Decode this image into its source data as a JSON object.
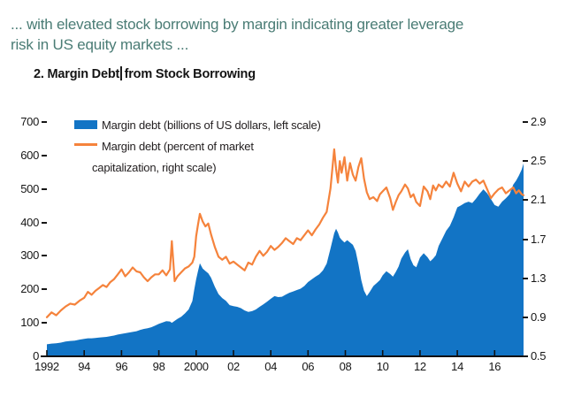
{
  "caption": {
    "line1": "... with elevated stock borrowing by margin indicating greater leverage",
    "line2": "risk in US equity markets ..."
  },
  "figure": {
    "title_part1": "2. Margin Debt",
    "title_part2": "from Stock Borrowing"
  },
  "colors": {
    "caption_text": "#4a7c75",
    "title_text": "#141414",
    "axis_text": "#161616",
    "axis_line": "#111111",
    "margin_debt_fill": "#1274c5",
    "ratio_line": "#f5833c"
  },
  "chart_data": {
    "type": "area",
    "title": "2. Margin Debt from Stock Borrowing",
    "grid": false,
    "legend_position": "top-left-inside",
    "x_axis": {
      "range": [
        1992,
        2017.55
      ],
      "ticks": [
        1992,
        1994,
        1996,
        1998,
        2000,
        2002,
        2004,
        2006,
        2008,
        2010,
        2012,
        2014,
        2016
      ],
      "tick_labels": [
        "1992",
        "94",
        "96",
        "98",
        "2000",
        "02",
        "04",
        "06",
        "08",
        "10",
        "12",
        "14",
        "16"
      ]
    },
    "y_left": {
      "label": "Margin debt (billions of US dollars)",
      "range": [
        0,
        700
      ],
      "ticks": [
        0,
        100,
        200,
        300,
        400,
        500,
        600,
        700
      ],
      "tick_labels": [
        "0",
        "100",
        "200",
        "300",
        "400",
        "500",
        "600",
        "700"
      ]
    },
    "y_right": {
      "label": "Margin debt (percent of market capitalization)",
      "range": [
        0.5,
        2.9
      ],
      "ticks": [
        0.5,
        0.9,
        1.3,
        1.7,
        2.1,
        2.5,
        2.9
      ],
      "tick_labels": [
        "0.5",
        "0.9",
        "1.3",
        "1.7",
        "2.1",
        "2.5",
        "2.9"
      ]
    },
    "legend": [
      {
        "swatch": "area",
        "color": "#1274c5",
        "lines": [
          "Margin debt (billions of US dollars, left scale)"
        ]
      },
      {
        "swatch": "line",
        "color": "#f5833c",
        "lines": [
          "Margin debt (percent of market",
          "capitalization, right scale)"
        ]
      }
    ],
    "x": [
      1992,
      1992.25,
      1992.5,
      1992.75,
      1993,
      1993.25,
      1993.5,
      1993.75,
      1994,
      1994.2,
      1994.4,
      1994.6,
      1994.8,
      1995,
      1995.2,
      1995.4,
      1995.6,
      1995.8,
      1996,
      1996.2,
      1996.4,
      1996.6,
      1996.8,
      1997,
      1997.2,
      1997.4,
      1997.6,
      1997.8,
      1998,
      1998.2,
      1998.4,
      1998.6,
      1998.7,
      1998.85,
      1999,
      1999.2,
      1999.4,
      1999.6,
      1999.8,
      1999.9,
      2000,
      2000.1,
      2000.2,
      2000.35,
      2000.5,
      2000.65,
      2000.8,
      2001,
      2001.2,
      2001.4,
      2001.6,
      2001.8,
      2002,
      2002.2,
      2002.4,
      2002.6,
      2002.8,
      2003,
      2003.2,
      2003.4,
      2003.6,
      2003.8,
      2004,
      2004.2,
      2004.4,
      2004.6,
      2004.8,
      2005,
      2005.2,
      2005.4,
      2005.6,
      2005.8,
      2006,
      2006.2,
      2006.4,
      2006.6,
      2006.8,
      2007,
      2007.2,
      2007.4,
      2007.5,
      2007.6,
      2007.7,
      2007.8,
      2007.95,
      2008.1,
      2008.25,
      2008.4,
      2008.55,
      2008.7,
      2008.85,
      2009,
      2009.15,
      2009.3,
      2009.5,
      2009.7,
      2009.85,
      2010,
      2010.2,
      2010.4,
      2010.55,
      2010.7,
      2010.85,
      2011,
      2011.2,
      2011.35,
      2011.5,
      2011.65,
      2011.8,
      2012,
      2012.2,
      2012.4,
      2012.55,
      2012.7,
      2012.85,
      2013,
      2013.2,
      2013.4,
      2013.6,
      2013.8,
      2014,
      2014.2,
      2014.4,
      2014.6,
      2014.8,
      2015,
      2015.2,
      2015.4,
      2015.6,
      2015.8,
      2016,
      2016.2,
      2016.4,
      2016.6,
      2016.8,
      2017,
      2017.15,
      2017.3,
      2017.45,
      2017.55
    ],
    "series": [
      {
        "name": "Margin debt (billions of US dollars, left scale)",
        "type": "area",
        "axis": "left",
        "values": [
          36,
          38,
          39,
          41,
          44,
          46,
          47,
          50,
          52,
          54,
          54,
          55,
          56,
          57,
          58,
          60,
          62,
          65,
          67,
          69,
          71,
          73,
          75,
          79,
          82,
          84,
          87,
          92,
          97,
          101,
          105,
          104,
          100,
          106,
          112,
          118,
          128,
          140,
          165,
          200,
          230,
          255,
          278,
          262,
          255,
          248,
          235,
          208,
          186,
          174,
          166,
          153,
          150,
          148,
          144,
          137,
          133,
          135,
          140,
          148,
          155,
          163,
          172,
          180,
          177,
          178,
          184,
          190,
          194,
          198,
          202,
          210,
          222,
          230,
          238,
          245,
          257,
          277,
          322,
          368,
          381,
          370,
          355,
          348,
          340,
          347,
          340,
          333,
          315,
          275,
          228,
          196,
          180,
          192,
          210,
          220,
          228,
          242,
          254,
          246,
          238,
          252,
          268,
          292,
          310,
          320,
          290,
          272,
          266,
          295,
          308,
          296,
          284,
          292,
          302,
          330,
          352,
          375,
          390,
          415,
          445,
          451,
          458,
          462,
          458,
          471,
          486,
          499,
          487,
          470,
          452,
          447,
          462,
          472,
          484,
          513,
          525,
          540,
          558,
          576
        ]
      },
      {
        "name": "Margin debt (percent of market capitalization, right scale)",
        "type": "line",
        "axis": "right",
        "values": [
          0.9,
          0.95,
          0.92,
          0.97,
          1.01,
          1.04,
          1.03,
          1.07,
          1.1,
          1.16,
          1.13,
          1.17,
          1.2,
          1.23,
          1.21,
          1.26,
          1.29,
          1.34,
          1.39,
          1.32,
          1.36,
          1.41,
          1.37,
          1.36,
          1.31,
          1.27,
          1.31,
          1.34,
          1.34,
          1.38,
          1.33,
          1.39,
          1.68,
          1.27,
          1.32,
          1.36,
          1.4,
          1.42,
          1.46,
          1.52,
          1.73,
          1.85,
          1.96,
          1.88,
          1.83,
          1.86,
          1.75,
          1.62,
          1.52,
          1.49,
          1.52,
          1.45,
          1.47,
          1.44,
          1.41,
          1.38,
          1.46,
          1.44,
          1.52,
          1.58,
          1.53,
          1.57,
          1.63,
          1.59,
          1.62,
          1.66,
          1.71,
          1.68,
          1.65,
          1.71,
          1.69,
          1.74,
          1.79,
          1.74,
          1.8,
          1.85,
          1.92,
          1.98,
          2.22,
          2.62,
          2.42,
          2.28,
          2.5,
          2.38,
          2.54,
          2.3,
          2.48,
          2.36,
          2.3,
          2.44,
          2.53,
          2.32,
          2.18,
          2.11,
          2.13,
          2.09,
          2.16,
          2.19,
          2.23,
          2.12,
          2.0,
          2.08,
          2.15,
          2.19,
          2.26,
          2.22,
          2.13,
          2.16,
          2.08,
          2.04,
          2.24,
          2.19,
          2.11,
          2.25,
          2.2,
          2.26,
          2.23,
          2.29,
          2.24,
          2.38,
          2.27,
          2.19,
          2.29,
          2.24,
          2.29,
          2.31,
          2.27,
          2.3,
          2.21,
          2.12,
          2.17,
          2.21,
          2.23,
          2.17,
          2.2,
          2.23,
          2.17,
          2.2,
          2.16,
          2.15
        ]
      }
    ]
  }
}
